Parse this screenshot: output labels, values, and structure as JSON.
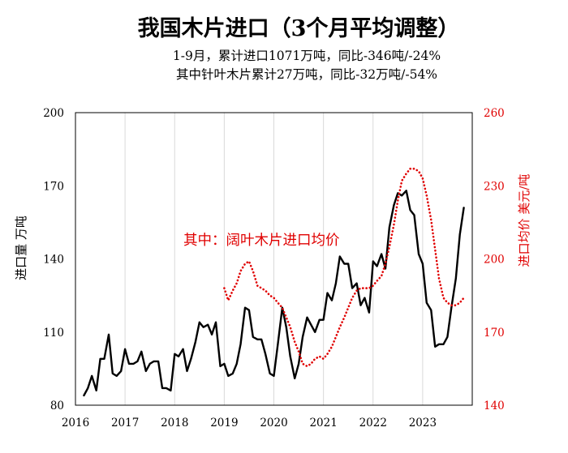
{
  "chart_data": {
    "type": "line",
    "title": "我国木片进口（3个月平均调整）",
    "subtitle_lines": [
      "1-9月，累计进口1071万吨，同比-346吨/-24%",
      "其中针叶木片累计27万吨，同比-32万吨/-54%"
    ],
    "annotation": "其中：阔叶木片进口均价",
    "ylabel_left": "进口量 万吨",
    "ylabel_right": "进口均价 美元/吨",
    "xlim": [
      2016,
      2024
    ],
    "ylim_left": [
      80,
      200
    ],
    "ylim_right": [
      140,
      260
    ],
    "x_ticks": [
      "2016",
      "2017",
      "2018",
      "2019",
      "2020",
      "2021",
      "2022",
      "2023"
    ],
    "y_ticks_left": [
      "80",
      "110",
      "140",
      "170",
      "200"
    ],
    "y_ticks_right": [
      "140",
      "170",
      "200",
      "230",
      "260"
    ],
    "grid": "vertical",
    "colors": {
      "volume": "#000000",
      "price": "#e00000",
      "right_axis": "#e00000"
    },
    "series": [
      {
        "key": "volume",
        "axis": "left",
        "style": "solid",
        "x": [
          2016.17,
          2016.25,
          2016.33,
          2016.42,
          2016.5,
          2016.58,
          2016.67,
          2016.75,
          2016.83,
          2016.92,
          2017.0,
          2017.08,
          2017.17,
          2017.25,
          2017.33,
          2017.42,
          2017.5,
          2017.58,
          2017.67,
          2017.75,
          2017.83,
          2017.92,
          2018.0,
          2018.08,
          2018.17,
          2018.25,
          2018.33,
          2018.42,
          2018.5,
          2018.58,
          2018.67,
          2018.75,
          2018.83,
          2018.92,
          2019.0,
          2019.08,
          2019.17,
          2019.25,
          2019.33,
          2019.42,
          2019.5,
          2019.58,
          2019.67,
          2019.75,
          2019.83,
          2019.92,
          2020.0,
          2020.08,
          2020.17,
          2020.25,
          2020.33,
          2020.42,
          2020.5,
          2020.58,
          2020.67,
          2020.75,
          2020.83,
          2020.92,
          2021.0,
          2021.08,
          2021.17,
          2021.25,
          2021.33,
          2021.42,
          2021.5,
          2021.58,
          2021.67,
          2021.75,
          2021.83,
          2021.92,
          2022.0,
          2022.08,
          2022.17,
          2022.25,
          2022.33,
          2022.42,
          2022.5,
          2022.58,
          2022.67,
          2022.75,
          2022.83,
          2022.92,
          2023.0,
          2023.08,
          2023.17,
          2023.25,
          2023.33,
          2023.42,
          2023.5,
          2023.58,
          2023.67,
          2023.75,
          2023.83
        ],
        "y": [
          84,
          87,
          92,
          86,
          99,
          99,
          109,
          93,
          92,
          94,
          103,
          97,
          97,
          98,
          102,
          94,
          97,
          98,
          98,
          87,
          87,
          86,
          101,
          100,
          103,
          94,
          99,
          106,
          114,
          112,
          113,
          109,
          114,
          96,
          97,
          92,
          93,
          97,
          105,
          120,
          119,
          108,
          107,
          107,
          101,
          93,
          92,
          105,
          120,
          112,
          100,
          91,
          97,
          108,
          116,
          113,
          110,
          115,
          115,
          126,
          123,
          130,
          141,
          138,
          138,
          128,
          130,
          121,
          124,
          118,
          139,
          137,
          142,
          136,
          153,
          162,
          167,
          166,
          168,
          160,
          158,
          142,
          138,
          122,
          119,
          104,
          105,
          105,
          108,
          120,
          132,
          150,
          161
        ]
      },
      {
        "key": "price",
        "axis": "right",
        "style": "dotted",
        "x": [
          2019.0,
          2019.08,
          2019.17,
          2019.25,
          2019.33,
          2019.42,
          2019.5,
          2019.58,
          2019.67,
          2019.75,
          2019.83,
          2019.92,
          2020.0,
          2020.08,
          2020.17,
          2020.25,
          2020.33,
          2020.42,
          2020.5,
          2020.58,
          2020.67,
          2020.75,
          2020.83,
          2020.92,
          2021.0,
          2021.08,
          2021.17,
          2021.25,
          2021.33,
          2021.42,
          2021.5,
          2021.58,
          2021.67,
          2021.75,
          2021.83,
          2021.92,
          2022.0,
          2022.08,
          2022.17,
          2022.25,
          2022.33,
          2022.42,
          2022.5,
          2022.58,
          2022.67,
          2022.75,
          2022.83,
          2022.92,
          2023.0,
          2023.08,
          2023.17,
          2023.25,
          2023.33,
          2023.42,
          2023.5,
          2023.58,
          2023.67,
          2023.75,
          2023.83
        ],
        "y": [
          188,
          183,
          187,
          190,
          195,
          198,
          199,
          195,
          189,
          188,
          187,
          185,
          184,
          182,
          180,
          176,
          172,
          166,
          162,
          157,
          156,
          157,
          159,
          160,
          159,
          161,
          164,
          168,
          172,
          176,
          180,
          184,
          187,
          188,
          188,
          188,
          189,
          191,
          193,
          198,
          205,
          214,
          224,
          232,
          235,
          237,
          237,
          236,
          233,
          226,
          216,
          204,
          192,
          184,
          182,
          181,
          181,
          182,
          184
        ]
      }
    ]
  }
}
